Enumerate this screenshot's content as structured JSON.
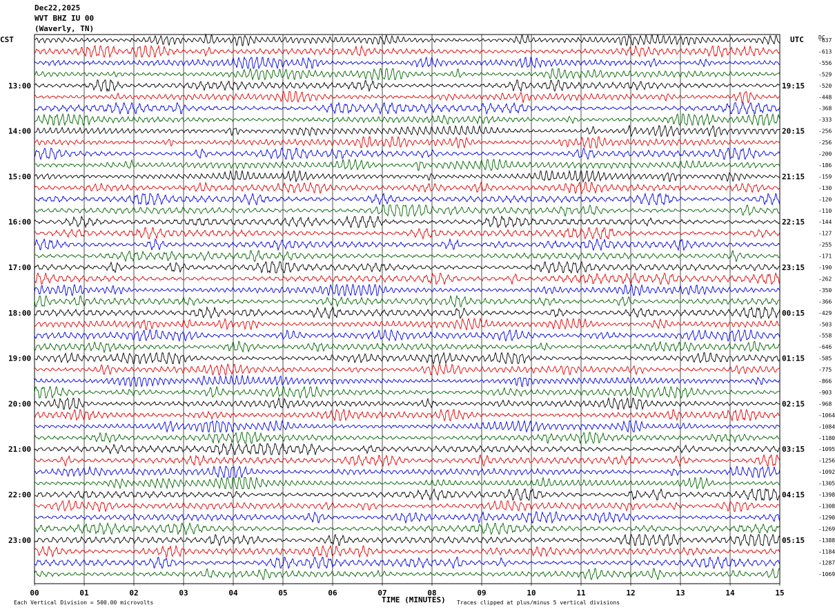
{
  "header": {
    "date": "Dec22,2025",
    "station": "WVT BHZ IU 00",
    "location": "(Waverly, TN)"
  },
  "axis": {
    "left_zone": "CST",
    "right_zone": "UTC",
    "dc_label": "DC",
    "xlabel": "TIME (MINUTES)"
  },
  "footer": {
    "scale_note": "Each Vertical Division =  500.00 microvolts",
    "clip_note": "Traces clipped at plus/minus 5 vertical divisions"
  },
  "chart_data": {
    "type": "line",
    "title": "Dec22,2025 WVT BHZ IU 00 (Waverly, TN)",
    "xlabel": "TIME (MINUTES)",
    "xlim": [
      0,
      15
    ],
    "x_ticks": [
      "00",
      "01",
      "02",
      "03",
      "04",
      "05",
      "06",
      "07",
      "08",
      "09",
      "10",
      "11",
      "12",
      "13",
      "14",
      "15"
    ],
    "trace_minutes": 15,
    "trace_colors": [
      "#000000",
      "#e00000",
      "#0000e0",
      "#006400"
    ],
    "left_hour_labels": [
      "13:00",
      "14:00",
      "15:00",
      "16:00",
      "17:00",
      "18:00",
      "19:00",
      "20:00",
      "21:00",
      "22:00",
      "23:00"
    ],
    "right_hour_labels": [
      "19:15",
      "20:15",
      "21:15",
      "22:15",
      "23:15",
      "00:15",
      "01:15",
      "02:15",
      "03:15",
      "04:15",
      "05:15"
    ],
    "dc_offsets": [
      "-637",
      "-613",
      "-556",
      "-529",
      "-520",
      "-448",
      "-368",
      "-333",
      "-256",
      "-256",
      "-200",
      "-186",
      "-159",
      "-130",
      "-120",
      "-110",
      "-144",
      "-127",
      "-255",
      "-171",
      "-190",
      "-262",
      "-350",
      "-366",
      "-429",
      "-503",
      "-558",
      "-646",
      "-585",
      "-775",
      "-866",
      "-903",
      "-968",
      "-1064",
      "-1084",
      "-1180",
      "-1095",
      "-1256",
      "-1092",
      "-1305",
      "-1398",
      "-1308",
      "-1290",
      "-1269",
      "-1388",
      "-1184",
      "-1287",
      "-1069"
    ],
    "units": "microvolts",
    "vertical_division_microvolts": 500.0,
    "clip_divisions": 5
  }
}
